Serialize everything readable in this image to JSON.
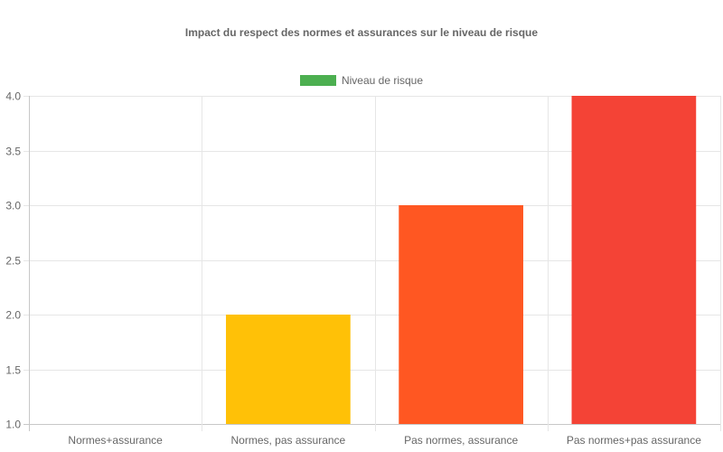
{
  "chart_data": {
    "type": "bar",
    "title": "Impact du respect des normes et assurances sur le niveau de risque",
    "categories": [
      "Normes+assurance",
      "Normes, pas assurance",
      "Pas normes, assurance",
      "Pas normes+pas assurance"
    ],
    "series": [
      {
        "name": "Niveau de risque",
        "values": [
          1,
          2,
          3,
          4
        ],
        "colors": [
          "#4CAF50",
          "#FFC107",
          "#FF5722",
          "#F44336"
        ]
      }
    ],
    "legend": {
      "position": "top",
      "label": "Niveau de risque",
      "color": "#4CAF50"
    },
    "xlabel": "",
    "ylabel": "",
    "ylim": [
      1.0,
      4.0
    ],
    "yticks": [
      "4.0",
      "3.5",
      "3.0",
      "2.5",
      "2.0",
      "1.5",
      "1.0"
    ],
    "grid": true
  }
}
